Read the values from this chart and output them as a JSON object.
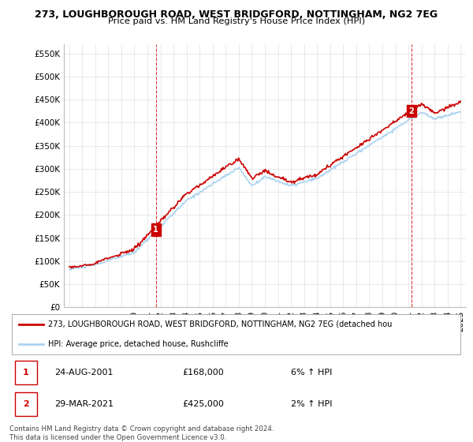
{
  "title_line1": "273, LOUGHBOROUGH ROAD, WEST BRIDGFORD, NOTTINGHAM, NG2 7EG",
  "title_line2": "Price paid vs. HM Land Registry's House Price Index (HPI)",
  "ylabel_ticks": [
    "£0",
    "£50K",
    "£100K",
    "£150K",
    "£200K",
    "£250K",
    "£300K",
    "£350K",
    "£400K",
    "£450K",
    "£500K",
    "£550K"
  ],
  "ytick_values": [
    0,
    50000,
    100000,
    150000,
    200000,
    250000,
    300000,
    350000,
    400000,
    450000,
    500000,
    550000
  ],
  "ylim": [
    0,
    570000
  ],
  "xlim_start": 1994.6,
  "xlim_end": 2025.4,
  "xticks": [
    1995,
    1996,
    1997,
    1998,
    1999,
    2000,
    2001,
    2002,
    2003,
    2004,
    2005,
    2006,
    2007,
    2008,
    2009,
    2010,
    2011,
    2012,
    2013,
    2014,
    2015,
    2016,
    2017,
    2018,
    2019,
    2020,
    2021,
    2022,
    2023,
    2024,
    2025
  ],
  "hpi_color": "#aad4f0",
  "price_color": "#cc0000",
  "bg_color": "#ffffff",
  "plot_bg_color": "#ffffff",
  "grid_color": "#e0e0e0",
  "legend_label_red": "273, LOUGHBOROUGH ROAD, WEST BRIDGFORD, NOTTINGHAM, NG2 7EG (detached hou",
  "legend_label_blue": "HPI: Average price, detached house, Rushcliffe",
  "sale1_date": "24-AUG-2001",
  "sale1_price": "£168,000",
  "sale1_hpi": "6% ↑ HPI",
  "sale1_year": 2001.65,
  "sale1_value": 168000,
  "sale2_date": "29-MAR-2021",
  "sale2_price": "£425,000",
  "sale2_hpi": "2% ↑ HPI",
  "sale2_year": 2021.23,
  "sale2_value": 425000,
  "footer_line1": "Contains HM Land Registry data © Crown copyright and database right 2024.",
  "footer_line2": "This data is licensed under the Open Government Licence v3.0."
}
